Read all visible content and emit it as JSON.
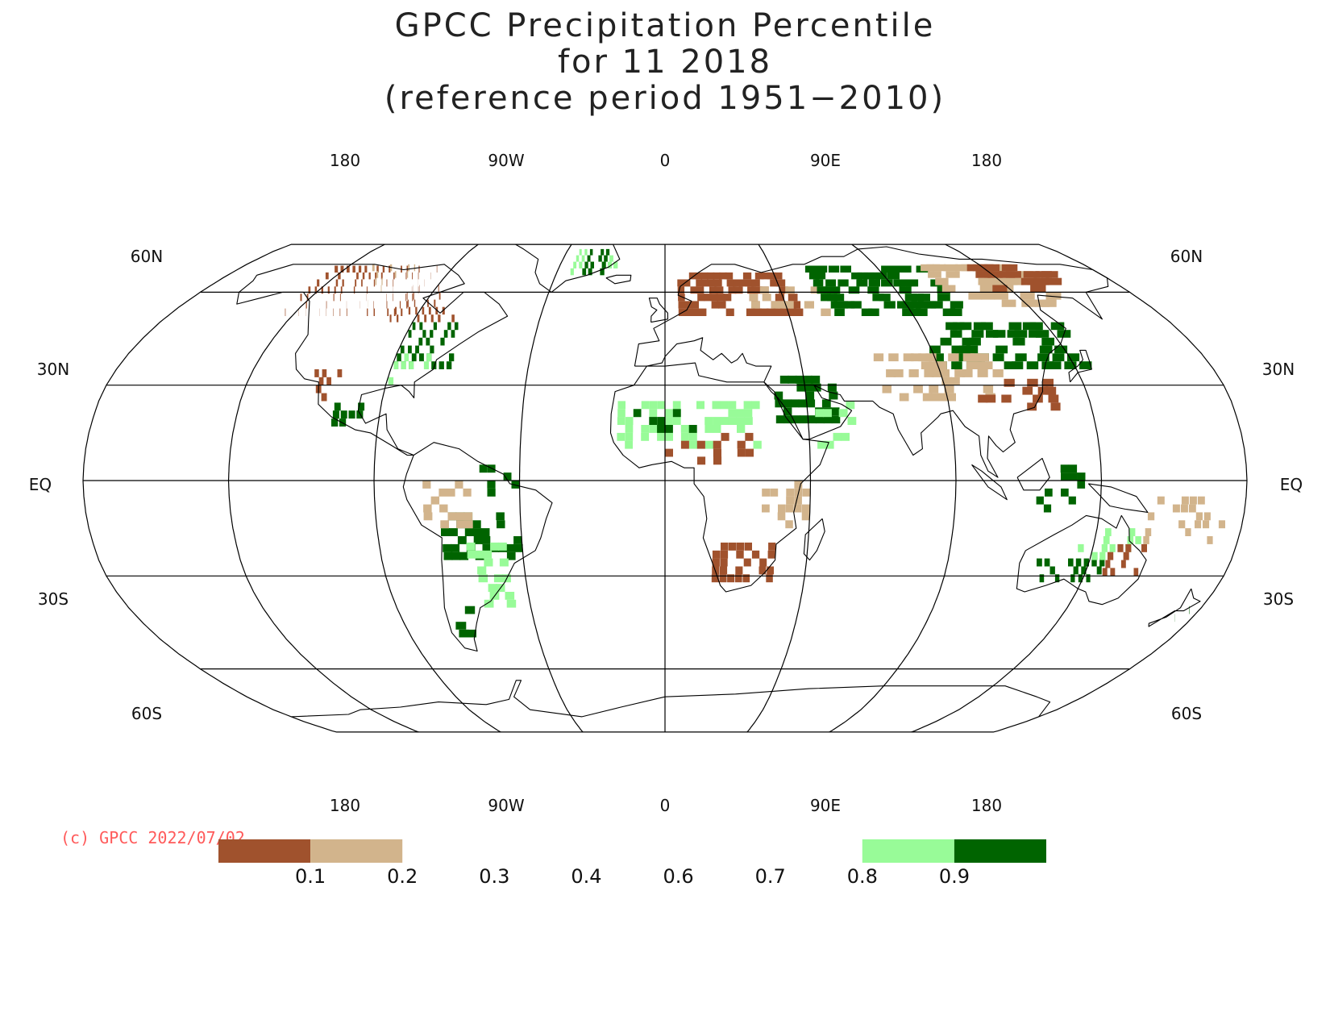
{
  "title": {
    "line1": "GPCC Precipitation Percentile",
    "line2": "for 11 2018",
    "line3": "(reference period 1951−2010)"
  },
  "copyright": "(c) GPCC 2022/07/02",
  "map": {
    "projection": "Robinson",
    "lon_labels": [
      "180",
      "90W",
      "0",
      "90E",
      "180"
    ],
    "lat_labels_left": [
      "60N",
      "30N",
      "EQ",
      "30S",
      "60S"
    ],
    "lat_labels_right": [
      "60N",
      "30N",
      "EQ",
      "30S",
      "60S"
    ],
    "colors": {
      "very_dry": "#a0522d",
      "dry": "#d2b48c",
      "wet": "#98fb98",
      "very_wet": "#006400"
    }
  },
  "legend": {
    "ticks": [
      "0.1",
      "0.2",
      "0.3",
      "0.4",
      "0.6",
      "0.7",
      "0.8",
      "0.9"
    ],
    "bins": [
      {
        "from": 0.0,
        "to": 0.1,
        "color": "#a0522d"
      },
      {
        "from": 0.1,
        "to": 0.2,
        "color": "#d2b48c"
      },
      {
        "from": 0.8,
        "to": 0.9,
        "color": "#98fb98"
      },
      {
        "from": 0.9,
        "to": 1.0,
        "color": "#006400"
      }
    ]
  }
}
